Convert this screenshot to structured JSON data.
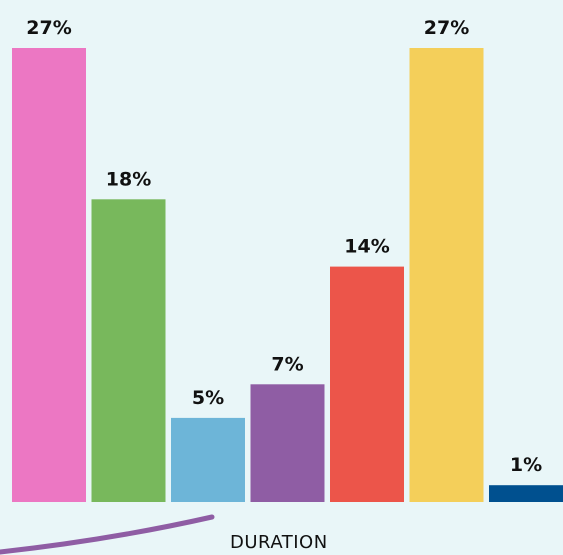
{
  "chart_data": {
    "type": "bar",
    "categories": [
      "",
      "",
      "",
      "",
      "",
      "",
      ""
    ],
    "values": [
      27,
      18,
      5,
      7,
      14,
      27,
      1
    ],
    "value_labels": [
      "27%",
      "18%",
      "5%",
      "7%",
      "14%",
      "27%",
      "1%"
    ],
    "colors": [
      "#ec77c3",
      "#78b85c",
      "#6db5d8",
      "#8f5da4",
      "#ec554a",
      "#f4cf5a",
      "#00508f"
    ],
    "title": "",
    "xlabel": "DURATION",
    "ylabel": "",
    "ylim": [
      0,
      27
    ],
    "grid": false,
    "legend": "none"
  },
  "style": {
    "background": "#e9f6f8",
    "accent_swoosh": "#8f5da4"
  }
}
